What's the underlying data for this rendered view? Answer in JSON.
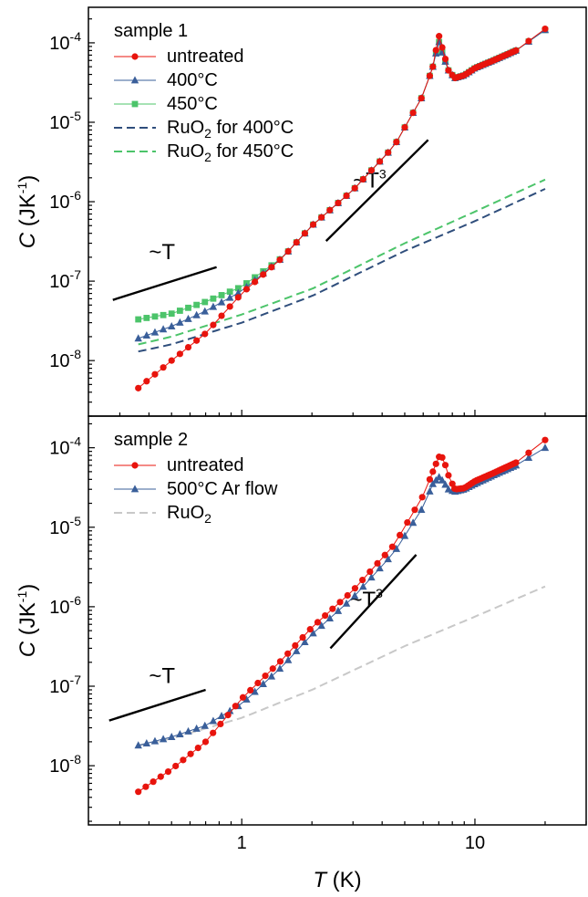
{
  "figure": {
    "xlabel": {
      "italic": "T",
      "rest": " (K)"
    },
    "ylabel": {
      "italic": "C",
      "rest": " (JK",
      "sup": "-1",
      "close": ")"
    },
    "xticks": [
      {
        "v": 1,
        "label": "1"
      },
      {
        "v": 10,
        "label": "10"
      }
    ],
    "yticks": [
      {
        "exp": -8,
        "base": "10",
        "sup": "-8"
      },
      {
        "exp": -7,
        "base": "10",
        "sup": "-7"
      },
      {
        "exp": -6,
        "base": "10",
        "sup": "-6"
      },
      {
        "exp": -5,
        "base": "10",
        "sup": "-5"
      },
      {
        "exp": -4,
        "base": "10",
        "sup": "-4"
      }
    ]
  },
  "chart_data": [
    {
      "type": "scatter",
      "xscale": "log",
      "yscale": "log",
      "xlim": [
        0.22,
        30
      ],
      "ylim": [
        2e-09,
        0.00028
      ],
      "legend_title": "sample 1",
      "legend_placement": "top-left",
      "series": [
        {
          "name": "untreated",
          "color": "#e8140d",
          "marker": "circle",
          "line": "solid",
          "generate": "untreated1"
        },
        {
          "name": "400°C",
          "color": "#3a5f9a",
          "marker": "triangle",
          "line": "solid",
          "generate": "t400"
        },
        {
          "name": "450°C",
          "color": "#4cc46a",
          "marker": "square",
          "line": "solid",
          "generate": "t450"
        },
        {
          "name": "RuO2 for 400°C",
          "name_base": "RuO",
          "name_sub": "2",
          "name_rest": " for 400°C",
          "color": "#2f4e7c",
          "marker": "none",
          "line": "dashed",
          "generate": "ru400"
        },
        {
          "name": "RuO2 for 450°C",
          "name_base": "RuO",
          "name_sub": "2",
          "name_rest": " for 450°C",
          "color": "#4cc46a",
          "marker": "none",
          "line": "dashed",
          "generate": "ru450"
        }
      ],
      "annotations": [
        {
          "text": "~T",
          "sup": "",
          "x": 0.4,
          "y": 1.9e-07,
          "line": [
            [
              0.28,
              5.8e-08
            ],
            [
              0.78,
              1.5e-07
            ]
          ]
        },
        {
          "text": "~T",
          "sup": "3",
          "x": 3.0,
          "y": 1.5e-06,
          "line": [
            [
              2.3,
              3.2e-07
            ],
            [
              6.3,
              6e-06
            ]
          ]
        }
      ]
    },
    {
      "type": "scatter",
      "xscale": "log",
      "yscale": "log",
      "xlim": [
        0.22,
        30
      ],
      "ylim": [
        1.8e-09,
        0.00025
      ],
      "legend_title": "sample 2",
      "legend_placement": "top-left",
      "series": [
        {
          "name": "untreated",
          "color": "#e8140d",
          "marker": "circle",
          "line": "solid",
          "generate": "untreated2"
        },
        {
          "name": "500°C Ar flow",
          "color": "#3a5f9a",
          "marker": "triangle",
          "line": "solid",
          "generate": "ar500"
        },
        {
          "name": "RuO2",
          "name_base": "RuO",
          "name_sub": "2",
          "name_rest": "",
          "color": "#c8c8c8",
          "marker": "none",
          "line": "dashed",
          "generate": "ru2"
        }
      ],
      "annotations": [
        {
          "text": "~T",
          "sup": "",
          "x": 0.4,
          "y": 1.1e-07,
          "line": [
            [
              0.27,
              3.7e-08
            ],
            [
              0.7,
              9e-08
            ]
          ]
        },
        {
          "text": "~T",
          "sup": "3",
          "x": 2.9,
          "y": 1e-06,
          "line": [
            [
              2.4,
              3e-07
            ],
            [
              5.6,
              4.5e-06
            ]
          ]
        }
      ]
    }
  ]
}
